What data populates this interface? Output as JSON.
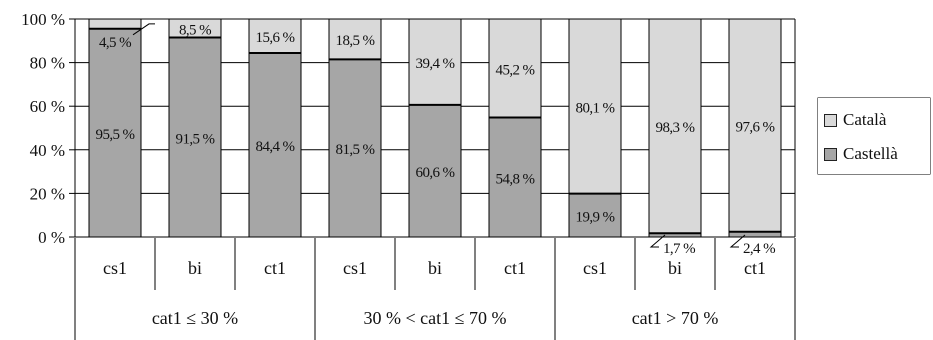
{
  "chart_data": {
    "type": "bar",
    "stacked": true,
    "percent_stacked": true,
    "categories": [
      "cs1",
      "bi",
      "ct1",
      "cs1",
      "bi",
      "ct1",
      "cs1",
      "bi",
      "ct1"
    ],
    "groups": [
      {
        "label": "cat1 ≤ 30 %",
        "span": 3
      },
      {
        "label": "30 % < cat1 ≤ 70 %",
        "span": 3
      },
      {
        "label": "cat1 > 70 %",
        "span": 3
      }
    ],
    "series": [
      {
        "name": "Castellà",
        "color": "#a6a6a6",
        "values": [
          95.5,
          91.5,
          84.4,
          81.5,
          60.6,
          54.8,
          19.9,
          1.7,
          2.4
        ],
        "labels": [
          "95,5 %",
          "91,5 %",
          "84,4 %",
          "81,5 %",
          "60,6 %",
          "54,8 %",
          "19,9 %",
          "1,7 %",
          "2,4 %"
        ]
      },
      {
        "name": "Català",
        "color": "#d9d9d9",
        "values": [
          4.5,
          8.5,
          15.6,
          18.5,
          39.4,
          45.2,
          80.1,
          98.3,
          97.6
        ],
        "labels": [
          "4,5 %",
          "8,5 %",
          "15,6 %",
          "18,5 %",
          "39,4 %",
          "45,2 %",
          "80,1 %",
          "98,3 %",
          "97,6 %"
        ]
      }
    ],
    "yticks": [
      0,
      20,
      40,
      60,
      80,
      100
    ],
    "ytick_labels": [
      "0 %",
      "20 %",
      "40 %",
      "60 %",
      "80 %",
      "100 %"
    ],
    "ylim": [
      0,
      100
    ],
    "grid": true,
    "legend": {
      "position": "right",
      "entries": [
        "Català",
        "Castellà"
      ]
    },
    "title": "",
    "xlabel": "",
    "ylabel": ""
  }
}
